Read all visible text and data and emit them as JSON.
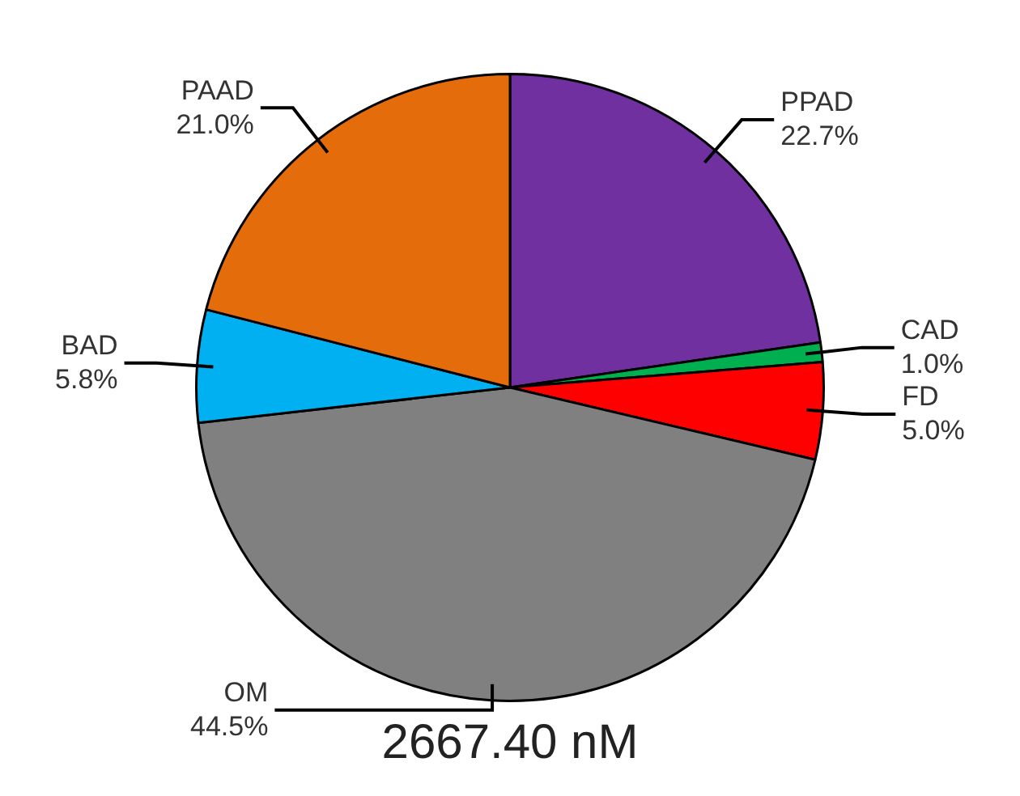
{
  "chart_data": {
    "type": "pie",
    "title": "2667.40 nM",
    "categories": [
      "PPAD",
      "CAD",
      "FD",
      "OM",
      "BAD",
      "PAAD"
    ],
    "values": [
      22.7,
      1.0,
      5.0,
      44.5,
      5.8,
      21.0
    ],
    "value_labels": [
      "22.7%",
      "1.0%",
      "5.0%",
      "44.5%",
      "5.8%",
      "21.0%"
    ],
    "colors": [
      "#7030a0",
      "#00b050",
      "#ff0000",
      "#808080",
      "#00b0f0",
      "#e46c0a"
    ],
    "legend": false
  }
}
